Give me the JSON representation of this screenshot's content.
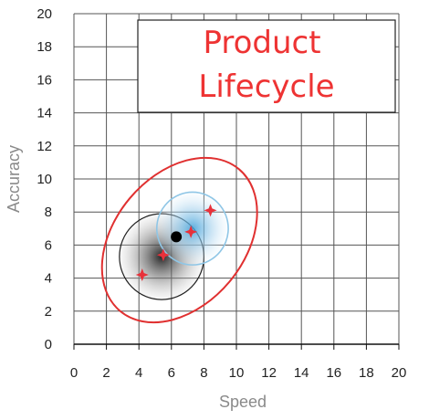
{
  "chart_data": {
    "type": "scatter",
    "title_lines": [
      "Product",
      "Lifecycle"
    ],
    "xlabel": "Speed",
    "ylabel": "Accuracy",
    "xlim": [
      0,
      20
    ],
    "ylim": [
      0,
      20
    ],
    "x_ticks": [
      0,
      2,
      4,
      6,
      8,
      10,
      12,
      14,
      16,
      18,
      20
    ],
    "y_ticks": [
      0,
      2,
      4,
      6,
      8,
      10,
      12,
      14,
      16,
      18,
      20
    ],
    "grid": true,
    "points": [
      {
        "x": 4.2,
        "y": 4.2
      },
      {
        "x": 5.5,
        "y": 5.4
      },
      {
        "x": 7.2,
        "y": 6.8
      },
      {
        "x": 8.4,
        "y": 8.1
      }
    ],
    "center_point": {
      "x": 6.3,
      "y": 6.5
    },
    "regions": [
      {
        "kind": "gray-disc",
        "cx": 5.4,
        "cy": 5.3,
        "rx": 2.6,
        "ry": 2.6
      },
      {
        "kind": "blue-disc",
        "cx": 7.3,
        "cy": 7.0,
        "rx": 2.2,
        "ry": 2.2
      },
      {
        "kind": "red-ellipse",
        "cx": 6.5,
        "cy": 6.3,
        "rx": 4.0,
        "ry": 5.6,
        "angle_deg": 40
      }
    ],
    "colors": {
      "grid": "#555555",
      "points": "#e8313a",
      "center": "#000000",
      "blue": "#8fc6e6",
      "red": "#e03030",
      "title": "#ee3333"
    }
  }
}
